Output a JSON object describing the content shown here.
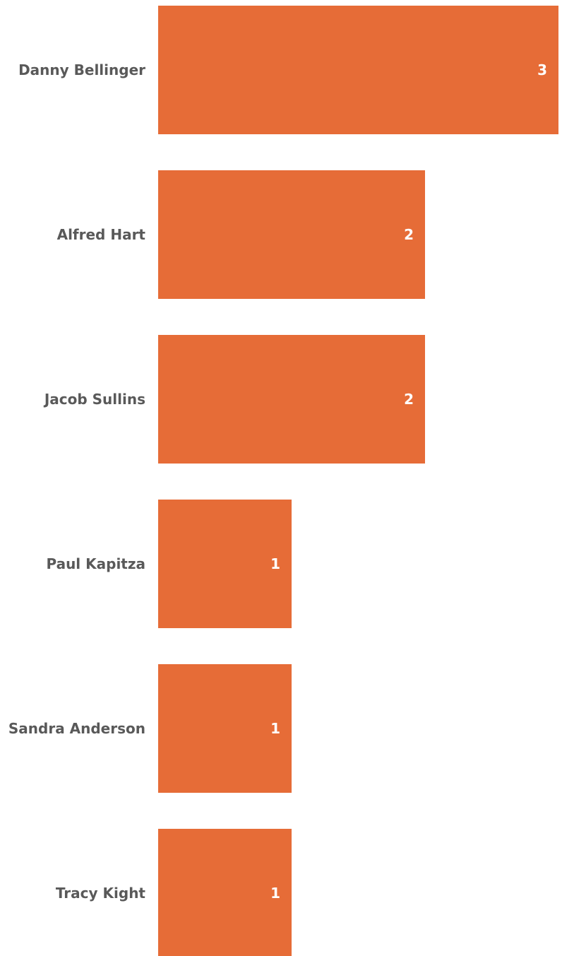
{
  "colors": {
    "bar": "#E66C37",
    "category_text": "#595959",
    "value_text": "#FFFFFF",
    "background": "#FFFFFF"
  },
  "chart_data": {
    "type": "bar",
    "orientation": "horizontal",
    "title": "",
    "xlabel": "",
    "ylabel": "",
    "grid": false,
    "legend": "none",
    "xlim": [
      0,
      3
    ],
    "categories": [
      "Danny Bellinger",
      "Alfred Hart",
      "Jacob Sullins",
      "Paul Kapitza",
      "Sandra Anderson",
      "Tracy Kight"
    ],
    "values": [
      3,
      2,
      2,
      1,
      1,
      1
    ],
    "data_labels": [
      "3",
      "2",
      "2",
      "1",
      "1",
      "1"
    ]
  }
}
